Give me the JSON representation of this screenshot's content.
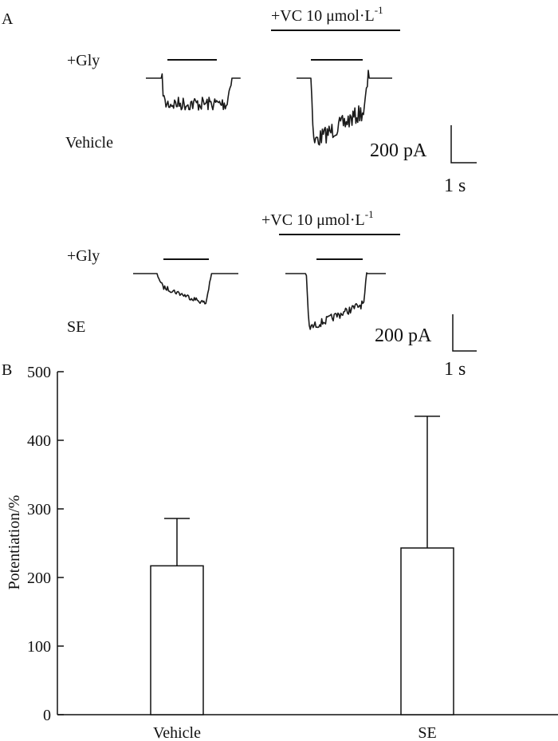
{
  "panel_a": {
    "label": "A",
    "gly_label": "+Gly",
    "vc_label_text": "+VC 10 μmol·L",
    "vc_label_sup": "-1",
    "rows": [
      {
        "condition": "Vehicle"
      },
      {
        "condition": "SE"
      }
    ],
    "scale_current": "200 pA",
    "scale_time": "1 s"
  },
  "panel_b": {
    "label": "B"
  },
  "chart_data": {
    "type": "bar",
    "title": "",
    "xlabel": "",
    "ylabel": "Potentiation/%",
    "categories": [
      "Vehicle",
      "SE"
    ],
    "values": [
      217,
      243
    ],
    "error_upper": [
      286,
      435
    ],
    "ylim": [
      0,
      500
    ],
    "yticks": [
      0,
      100,
      200,
      300,
      400,
      500
    ],
    "grid": false,
    "colors": {
      "bar_fill": "#ffffff",
      "bar_stroke": "#111111"
    }
  }
}
